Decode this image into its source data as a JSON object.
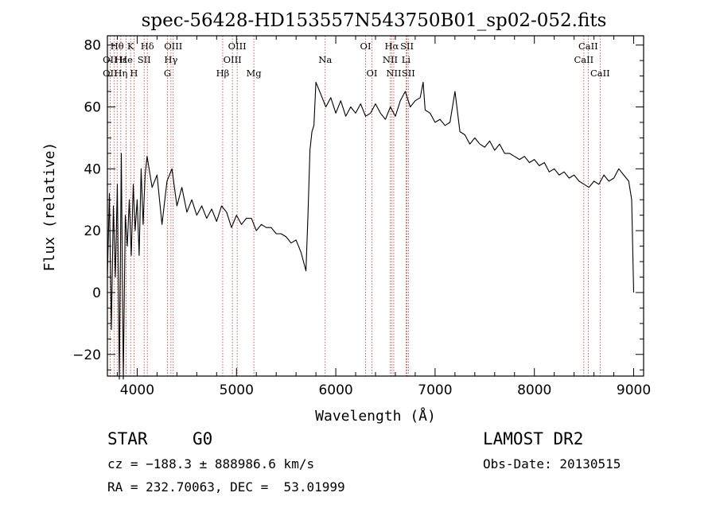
{
  "chart_data": {
    "type": "line",
    "title": "spec-56428-HD153557N543750B01_sp02-052.fits",
    "xlabel": "Wavelength (Å)",
    "ylabel": "Flux (relative)",
    "xlim": [
      3700,
      9100
    ],
    "ylim": [
      -27,
      83
    ],
    "x_ticks": [
      4000,
      5000,
      6000,
      7000,
      8000,
      9000
    ],
    "y_ticks": [
      -20,
      0,
      20,
      40,
      60,
      80
    ],
    "grid": false,
    "series": [
      {
        "x": [
          3700,
          3720,
          3740,
          3760,
          3780,
          3800,
          3820,
          3840,
          3860,
          3880,
          3900,
          3920,
          3940,
          3960,
          3980,
          4000,
          4020,
          4040,
          4060,
          4080,
          4100,
          4150,
          4200,
          4250,
          4300,
          4350,
          4400,
          4450,
          4500,
          4550,
          4600,
          4650,
          4700,
          4750,
          4800,
          4850,
          4900,
          4950,
          5000,
          5050,
          5100,
          5150,
          5200,
          5250,
          5300,
          5350,
          5400,
          5450,
          5500,
          5550,
          5600,
          5650,
          5700,
          5720,
          5740,
          5760,
          5780,
          5800,
          5850,
          5900,
          5950,
          6000,
          6050,
          6100,
          6150,
          6200,
          6250,
          6300,
          6350,
          6400,
          6450,
          6500,
          6550,
          6600,
          6650,
          6700,
          6750,
          6800,
          6850,
          6880,
          6900,
          6950,
          7000,
          7050,
          7100,
          7150,
          7200,
          7250,
          7300,
          7350,
          7400,
          7450,
          7500,
          7550,
          7600,
          7650,
          7700,
          7750,
          7800,
          7850,
          7900,
          7950,
          8000,
          8050,
          8100,
          8150,
          8200,
          8250,
          8300,
          8350,
          8400,
          8450,
          8500,
          8550,
          8600,
          8650,
          8700,
          8750,
          8800,
          8850,
          8900,
          8950,
          8980,
          9000
        ],
        "y": [
          5,
          32,
          -12,
          28,
          5,
          35,
          -28,
          45,
          -28,
          25,
          15,
          30,
          12,
          35,
          20,
          30,
          12,
          40,
          22,
          38,
          44,
          34,
          38,
          22,
          36,
          40,
          28,
          34,
          26,
          30,
          25,
          28,
          24,
          27,
          23,
          28,
          26,
          21,
          25,
          22,
          24,
          24,
          20,
          22,
          21,
          21,
          19,
          19,
          18,
          16,
          17,
          13,
          7,
          25,
          46,
          52,
          54,
          68,
          64,
          60,
          63,
          58,
          62,
          57,
          60,
          58,
          61,
          57,
          58,
          61,
          58,
          56,
          60,
          57,
          62,
          65,
          60,
          62,
          63,
          68,
          59,
          58,
          55,
          56,
          54,
          55,
          65,
          52,
          51,
          48,
          50,
          48,
          47,
          49,
          46,
          48,
          45,
          45,
          44,
          43,
          44,
          42,
          43,
          41,
          42,
          39,
          40,
          38,
          39,
          37,
          38,
          36,
          35,
          34,
          36,
          35,
          38,
          36,
          37,
          40,
          38,
          36,
          30,
          0
        ]
      }
    ],
    "line_labels": [
      {
        "text": "Hθ",
        "row": 1,
        "wave": 3798
      },
      {
        "text": "Hε",
        "row": 2,
        "wave": 3835
      },
      {
        "text": "K",
        "row": 1,
        "wave": 3934
      },
      {
        "text": "Hδ",
        "row": 1,
        "wave": 4102
      },
      {
        "text": "OIII",
        "row": 1,
        "wave": 4363
      },
      {
        "text": "OIII",
        "row": 1,
        "wave": 5007
      },
      {
        "text": "OI",
        "row": 1,
        "wave": 6300
      },
      {
        "text": "Hα",
        "row": 1,
        "wave": 6563
      },
      {
        "text": "SII",
        "row": 1,
        "wave": 6717
      },
      {
        "text": "CaII",
        "row": 1,
        "wave": 8542
      },
      {
        "text": "OII",
        "row": 2,
        "wave": 3727
      },
      {
        "text": "He",
        "row": 2,
        "wave": 3889
      },
      {
        "text": "SII",
        "row": 2,
        "wave": 4070
      },
      {
        "text": "Hγ",
        "row": 2,
        "wave": 4340
      },
      {
        "text": "OIII",
        "row": 2,
        "wave": 4959
      },
      {
        "text": "Na",
        "row": 2,
        "wave": 5893
      },
      {
        "text": "NII",
        "row": 2,
        "wave": 6548
      },
      {
        "text": "Li",
        "row": 2,
        "wave": 6708
      },
      {
        "text": "CaII",
        "row": 2,
        "wave": 8498
      },
      {
        "text": "OII",
        "row": 3,
        "wave": 3727
      },
      {
        "text": "Hη",
        "row": 3,
        "wave": 3835
      },
      {
        "text": "H",
        "row": 3,
        "wave": 3968
      },
      {
        "text": "G",
        "row": 3,
        "wave": 4305
      },
      {
        "text": "Hβ",
        "row": 3,
        "wave": 4861
      },
      {
        "text": "Mg",
        "row": 3,
        "wave": 5175
      },
      {
        "text": "OI",
        "row": 3,
        "wave": 6364
      },
      {
        "text": "NII",
        "row": 3,
        "wave": 6584
      },
      {
        "text": "SII",
        "row": 3,
        "wave": 6731
      },
      {
        "text": "CaII",
        "row": 3,
        "wave": 8662
      }
    ],
    "line_markers": [
      3727,
      3770,
      3798,
      3835,
      3889,
      3934,
      3968,
      4070,
      4102,
      4305,
      4340,
      4363,
      4861,
      4959,
      5007,
      5175,
      5893,
      6300,
      6364,
      6548,
      6563,
      6584,
      6708,
      6717,
      6731,
      8498,
      8542,
      8662
    ]
  },
  "info": {
    "object_class": "STAR",
    "subclass": "G0",
    "survey": "LAMOST DR2",
    "velocity": "cz = −188.3 ± 888986.6 km/s",
    "obs_date": "Obs-Date: 20130515",
    "coords": "RA = 232.70063, DEC =  53.01999"
  }
}
